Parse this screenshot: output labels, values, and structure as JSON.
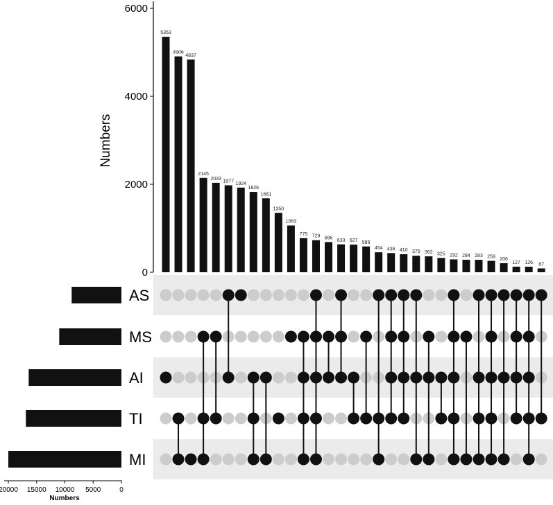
{
  "chart_data": {
    "type": "upset",
    "intersection_axis": {
      "ylabel": "Numbers",
      "ylim": [
        0,
        6000
      ],
      "ticks": [
        0,
        2000,
        4000,
        6000
      ]
    },
    "set_size_axis": {
      "xlabel": "Numbers",
      "xlim": [
        20000,
        0
      ],
      "ticks": [
        20000,
        15000,
        10000,
        5000,
        0
      ]
    },
    "sets": [
      {
        "name": "AS",
        "size": 8800
      },
      {
        "name": "MS",
        "size": 11000
      },
      {
        "name": "AI",
        "size": 16400
      },
      {
        "name": "TI",
        "size": 16900
      },
      {
        "name": "MI",
        "size": 20000
      }
    ],
    "intersections": [
      {
        "value": 5353,
        "members": [
          "AI"
        ]
      },
      {
        "value": 4906,
        "members": [
          "TI",
          "MI"
        ]
      },
      {
        "value": 4837,
        "members": [
          "MI"
        ]
      },
      {
        "value": 2145,
        "members": [
          "MS",
          "TI",
          "MI"
        ]
      },
      {
        "value": 2033,
        "members": [
          "MS",
          "TI"
        ]
      },
      {
        "value": 1977,
        "members": [
          "AS",
          "AI"
        ]
      },
      {
        "value": 1924,
        "members": [
          "AS"
        ]
      },
      {
        "value": 1826,
        "members": [
          "AI",
          "TI",
          "MI"
        ]
      },
      {
        "value": 1681,
        "members": [
          "AI",
          "MI"
        ]
      },
      {
        "value": 1350,
        "members": [
          "TI"
        ]
      },
      {
        "value": 1063,
        "members": [
          "MS"
        ]
      },
      {
        "value": 775,
        "members": [
          "MS",
          "AI",
          "TI",
          "MI"
        ]
      },
      {
        "value": 729,
        "members": [
          "AS",
          "MS",
          "AI",
          "TI",
          "MI"
        ]
      },
      {
        "value": 686,
        "members": [
          "MS",
          "AI"
        ]
      },
      {
        "value": 633,
        "members": [
          "AS",
          "MS",
          "AI"
        ]
      },
      {
        "value": 627,
        "members": [
          "AI",
          "TI"
        ]
      },
      {
        "value": 586,
        "members": [
          "MS",
          "TI"
        ]
      },
      {
        "value": 454,
        "members": [
          "AS",
          "TI",
          "MI"
        ]
      },
      {
        "value": 436,
        "members": [
          "AS",
          "MS",
          "AI",
          "TI"
        ]
      },
      {
        "value": 410,
        "members": [
          "AS",
          "MS",
          "AI",
          "TI"
        ]
      },
      {
        "value": 375,
        "members": [
          "AS",
          "AI",
          "MI"
        ]
      },
      {
        "value": 362,
        "members": [
          "MS",
          "AI",
          "MI"
        ]
      },
      {
        "value": 325,
        "members": [
          "AI",
          "TI"
        ]
      },
      {
        "value": 292,
        "members": [
          "AS",
          "MS",
          "AI",
          "TI",
          "MI"
        ]
      },
      {
        "value": 284,
        "members": [
          "MS",
          "MI"
        ]
      },
      {
        "value": 283,
        "members": [
          "AS",
          "AI",
          "TI",
          "MI"
        ]
      },
      {
        "value": 259,
        "members": [
          "AS",
          "MS",
          "AI",
          "TI",
          "MI"
        ]
      },
      {
        "value": 206,
        "members": [
          "AS",
          "AI",
          "MI"
        ]
      },
      {
        "value": 127,
        "members": [
          "AS",
          "MS",
          "AI",
          "TI"
        ]
      },
      {
        "value": 126,
        "members": [
          "AS",
          "MS",
          "AI",
          "TI",
          "MI"
        ]
      },
      {
        "value": 87,
        "members": [
          "AS",
          "TI"
        ]
      }
    ],
    "colors": {
      "bar": "#111111",
      "dot_active": "#111111",
      "dot_inactive": "#cccccc",
      "row_shade": "#ebebeb",
      "axis": "#000000"
    },
    "grid": false
  }
}
